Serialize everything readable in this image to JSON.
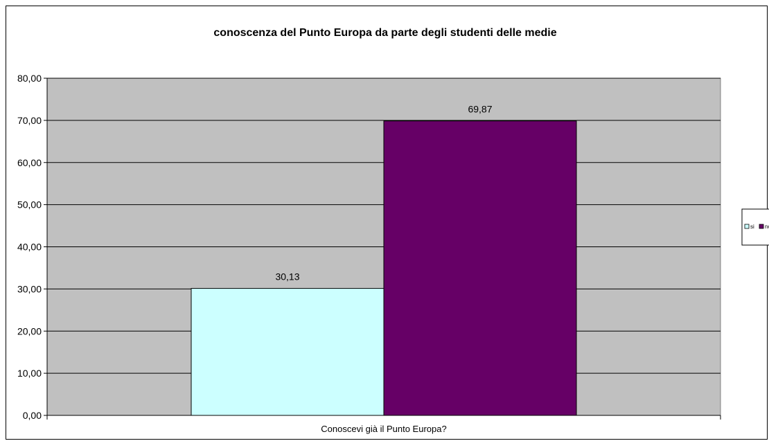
{
  "chart_data": {
    "type": "bar",
    "title": "conoscenza del Punto Europa da parte degli studenti delle medie",
    "categories": [
      "Conoscevi già il Punto Europa?"
    ],
    "series": [
      {
        "name": "si",
        "values": [
          30.13
        ],
        "label": "30,13",
        "color": "#ccffff"
      },
      {
        "name": "no",
        "values": [
          69.87
        ],
        "label": "69,87",
        "color": "#660066"
      }
    ],
    "ylim": [
      0,
      80
    ],
    "yticks": [
      "0,00",
      "10,00",
      "20,00",
      "30,00",
      "40,00",
      "50,00",
      "60,00",
      "70,00",
      "80,00"
    ],
    "xlabel": "",
    "ylabel": "",
    "grid": true,
    "legend_position": "right",
    "plot_background": "#c0c0c0"
  }
}
